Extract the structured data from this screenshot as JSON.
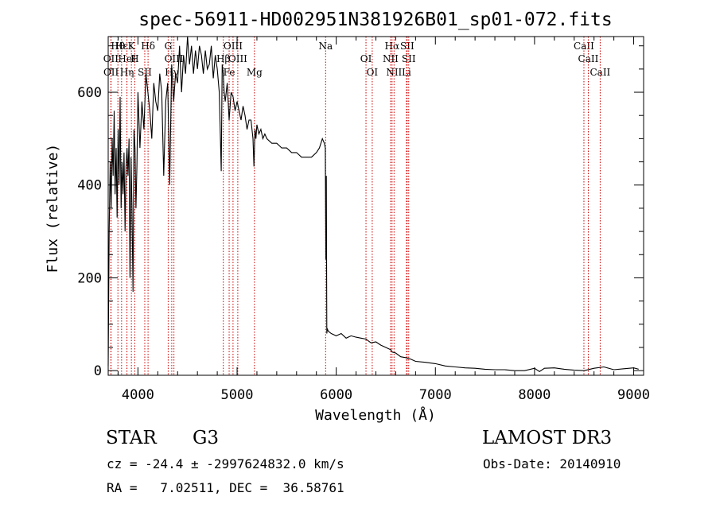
{
  "chart_data": {
    "type": "line",
    "title": "spec-56911-HD002951N381926B01_sp01-072.fits",
    "xlabel": "Wavelength (Å)",
    "ylabel": "Flux (relative)",
    "xlim": [
      3700,
      9100
    ],
    "ylim": [
      -10,
      720
    ],
    "xticks": [
      4000,
      5000,
      6000,
      7000,
      8000,
      9000
    ],
    "yticks": [
      0,
      200,
      400,
      600
    ],
    "line_color": "#000000",
    "marker_color": "#cc0000",
    "series": [
      {
        "name": "flux",
        "x": [
          3700,
          3710,
          3720,
          3730,
          3740,
          3750,
          3760,
          3770,
          3780,
          3790,
          3800,
          3810,
          3820,
          3830,
          3840,
          3850,
          3860,
          3870,
          3880,
          3890,
          3900,
          3910,
          3920,
          3930,
          3940,
          3950,
          3960,
          3970,
          3980,
          3990,
          4000,
          4020,
          4040,
          4060,
          4080,
          4100,
          4120,
          4140,
          4160,
          4180,
          4200,
          4220,
          4240,
          4260,
          4280,
          4300,
          4320,
          4340,
          4360,
          4380,
          4400,
          4420,
          4440,
          4460,
          4480,
          4500,
          4520,
          4540,
          4560,
          4580,
          4600,
          4620,
          4640,
          4660,
          4680,
          4700,
          4720,
          4740,
          4760,
          4780,
          4800,
          4820,
          4840,
          4850,
          4860,
          4870,
          4880,
          4900,
          4920,
          4940,
          4960,
          4980,
          5000,
          5020,
          5040,
          5060,
          5080,
          5100,
          5120,
          5140,
          5160,
          5170,
          5180,
          5190,
          5200,
          5220,
          5240,
          5260,
          5280,
          5300,
          5350,
          5400,
          5450,
          5500,
          5550,
          5600,
          5650,
          5700,
          5750,
          5800,
          5830,
          5860,
          5880,
          5890,
          5895,
          5900,
          5905,
          5910,
          5920,
          5950,
          6000,
          6050,
          6100,
          6150,
          6200,
          6250,
          6300,
          6350,
          6400,
          6450,
          6500,
          6550,
          6563,
          6600,
          6650,
          6700,
          6750,
          6800,
          6900,
          7000,
          7100,
          7200,
          7300,
          7400,
          7500,
          7600,
          7700,
          7800,
          7900,
          8000,
          8050,
          8100,
          8200,
          8300,
          8400,
          8500,
          8600,
          8700,
          8800,
          8900,
          9000,
          9050
        ],
        "y": [
          10,
          300,
          450,
          350,
          500,
          420,
          560,
          380,
          480,
          330,
          520,
          400,
          590,
          350,
          450,
          380,
          470,
          300,
          440,
          480,
          420,
          500,
          200,
          460,
          350,
          170,
          520,
          480,
          350,
          440,
          600,
          480,
          580,
          520,
          640,
          600,
          560,
          500,
          620,
          580,
          560,
          640,
          600,
          420,
          580,
          620,
          400,
          660,
          580,
          640,
          620,
          700,
          600,
          680,
          640,
          720,
          660,
          700,
          640,
          690,
          650,
          700,
          680,
          640,
          690,
          650,
          660,
          700,
          630,
          680,
          650,
          600,
          430,
          660,
          640,
          600,
          580,
          620,
          540,
          600,
          590,
          560,
          580,
          560,
          540,
          570,
          550,
          520,
          540,
          540,
          500,
          440,
          520,
          500,
          530,
          510,
          520,
          500,
          510,
          500,
          490,
          490,
          480,
          480,
          470,
          470,
          460,
          460,
          460,
          470,
          480,
          500,
          490,
          480,
          240,
          420,
          80,
          90,
          85,
          80,
          75,
          80,
          70,
          75,
          72,
          70,
          68,
          60,
          62,
          55,
          50,
          45,
          40,
          38,
          30,
          28,
          25,
          20,
          18,
          15,
          10,
          8,
          6,
          5,
          3,
          2,
          2,
          0,
          0,
          5,
          -2,
          5,
          6,
          3,
          1,
          0,
          5,
          8,
          2,
          4,
          6,
          3
        ]
      }
    ],
    "line_markers": [
      {
        "label": "Hθ",
        "wavelength": 3798
      },
      {
        "label": "OII",
        "wavelength": 3727
      },
      {
        "label": "OII",
        "wavelength": 3729
      },
      {
        "label": "Hε",
        "wavelength": 3835
      },
      {
        "label": "HeI",
        "wavelength": 3889
      },
      {
        "label": "Hη",
        "wavelength": 3889
      },
      {
        "label": "K",
        "wavelength": 3934
      },
      {
        "label": "H",
        "wavelength": 3968
      },
      {
        "label": "SII",
        "wavelength": 4069
      },
      {
        "label": "Hδ",
        "wavelength": 4102
      },
      {
        "label": "OIII",
        "wavelength": 4363
      },
      {
        "label": "Hγ",
        "wavelength": 4341
      },
      {
        "label": "G",
        "wavelength": 4305
      },
      {
        "label": "Hβ",
        "wavelength": 4861
      },
      {
        "label": "Fe",
        "wavelength": 4920
      },
      {
        "label": "OIII",
        "wavelength": 4959
      },
      {
        "label": "OIII",
        "wavelength": 5007
      },
      {
        "label": "Mg",
        "wavelength": 5175
      },
      {
        "label": "Na",
        "wavelength": 5893
      },
      {
        "label": "OI",
        "wavelength": 6300
      },
      {
        "label": "OI",
        "wavelength": 6363
      },
      {
        "label": "Hα",
        "wavelength": 6563
      },
      {
        "label": "NII",
        "wavelength": 6548
      },
      {
        "label": "NII",
        "wavelength": 6583
      },
      {
        "label": "SII",
        "wavelength": 6716
      },
      {
        "label": "SII",
        "wavelength": 6731
      },
      {
        "label": "Li",
        "wavelength": 6708
      },
      {
        "label": "CaII",
        "wavelength": 8498
      },
      {
        "label": "CaII",
        "wavelength": 8542
      },
      {
        "label": "CaII",
        "wavelength": 8662
      }
    ]
  },
  "info": {
    "object_type": "STAR",
    "subclass": "G3",
    "survey": "LAMOST DR3",
    "cz_line": "cz = -24.4 ± -2997624832.0 km/s",
    "obs_date": "Obs-Date: 20140910",
    "coords": "RA =   7.02511, DEC =  36.58761"
  }
}
